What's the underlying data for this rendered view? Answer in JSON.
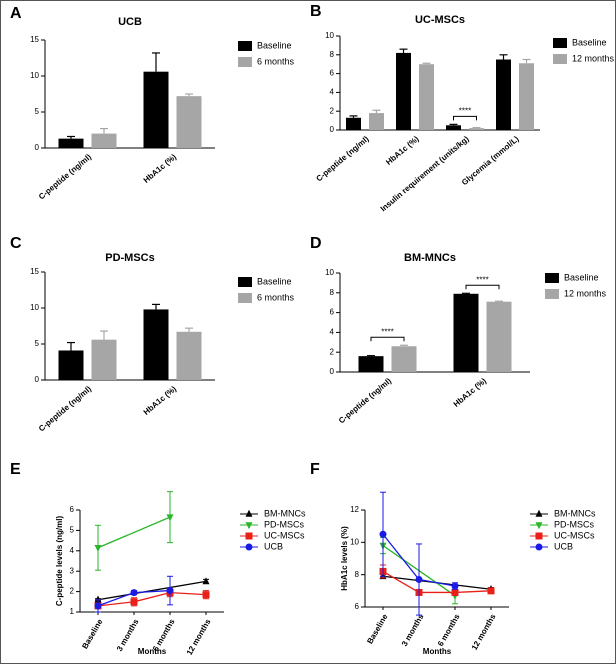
{
  "chart_data": [
    {
      "type": "bar",
      "panel": "A",
      "title": "UCB",
      "categories": [
        "C-peptide (ng/ml)",
        "HbA1c (%)"
      ],
      "series": [
        {
          "name": "Baseline",
          "color": "#000000",
          "values": [
            1.3,
            10.6
          ],
          "errors": [
            0.3,
            2.6
          ]
        },
        {
          "name": "6 months",
          "color": "#a6a6a6",
          "values": [
            2.0,
            7.2
          ],
          "errors": [
            0.7,
            0.3
          ]
        }
      ],
      "ylim": [
        0,
        15
      ],
      "yticks": [
        0,
        5,
        10,
        15
      ]
    },
    {
      "type": "bar",
      "panel": "B",
      "title": "UC-MSCs",
      "categories": [
        "C-peptide (ng/ml)",
        "HbA1c (%)",
        "Insulin requirement (units/kg)",
        "Glycemia (mmol/L)"
      ],
      "series": [
        {
          "name": "Baseline",
          "color": "#000000",
          "values": [
            1.3,
            8.2,
            0.5,
            7.5
          ],
          "errors": [
            0.2,
            0.4,
            0.1,
            0.5
          ]
        },
        {
          "name": "12 months",
          "color": "#a6a6a6",
          "values": [
            1.8,
            7.0,
            0.2,
            7.1
          ],
          "errors": [
            0.3,
            0.1,
            0.05,
            0.4
          ]
        }
      ],
      "ylim": [
        0,
        10
      ],
      "yticks": [
        0,
        2,
        4,
        6,
        8,
        10
      ],
      "significance": [
        {
          "category": "Insulin requirement (units/kg)",
          "label": "****"
        }
      ]
    },
    {
      "type": "bar",
      "panel": "C",
      "title": "PD-MSCs",
      "categories": [
        "C-peptide (ng/ml)",
        "HbA1c (%)"
      ],
      "series": [
        {
          "name": "Baseline",
          "color": "#000000",
          "values": [
            4.1,
            9.8
          ],
          "errors": [
            1.1,
            0.7
          ]
        },
        {
          "name": "6 months",
          "color": "#a6a6a6",
          "values": [
            5.6,
            6.7
          ],
          "errors": [
            1.2,
            0.5
          ]
        }
      ],
      "ylim": [
        0,
        15
      ],
      "yticks": [
        0,
        5,
        10,
        15
      ]
    },
    {
      "type": "bar",
      "panel": "D",
      "title": "BM-MNCs",
      "categories": [
        "C-peptide (ng/ml)",
        "HbA1c (%)"
      ],
      "series": [
        {
          "name": "Baseline",
          "color": "#000000",
          "values": [
            1.6,
            7.9
          ],
          "errors": [
            0.05,
            0.05
          ]
        },
        {
          "name": "12 months",
          "color": "#a6a6a6",
          "values": [
            2.6,
            7.1
          ],
          "errors": [
            0.1,
            0.05
          ]
        }
      ],
      "ylim": [
        0,
        10
      ],
      "yticks": [
        0,
        2,
        4,
        6,
        8,
        10
      ],
      "significance": [
        {
          "category": "C-peptide (ng/ml)",
          "label": "****"
        },
        {
          "category": "HbA1c (%)",
          "label": "****"
        }
      ]
    },
    {
      "type": "line",
      "panel": "E",
      "ylabel": "C-peptide levels (ng/ml)",
      "xlabel": "Months",
      "categories": [
        "Baseline",
        "3 months",
        "6 months",
        "12 months"
      ],
      "series": [
        {
          "name": "BM-MNCs",
          "color": "#000000",
          "marker": "triangle",
          "x": [
            "Baseline",
            "12 months"
          ],
          "values": [
            1.6,
            2.5
          ],
          "errors": [
            0.05,
            0.1
          ]
        },
        {
          "name": "PD-MSCs",
          "color": "#2bb52b",
          "marker": "triangle-down",
          "x": [
            "Baseline",
            "6 months"
          ],
          "values": [
            4.15,
            5.65
          ],
          "errors": [
            1.1,
            1.25
          ]
        },
        {
          "name": "UC-MSCs",
          "color": "#e8201a",
          "marker": "square",
          "x": [
            "Baseline",
            "3 months",
            "6 months",
            "12 months"
          ],
          "values": [
            1.3,
            1.5,
            1.95,
            1.85
          ],
          "errors": [
            0.3,
            0.2,
            0.2,
            0.2
          ]
        },
        {
          "name": "UCB",
          "color": "#1a1ae6",
          "marker": "circle",
          "x": [
            "Baseline",
            "3 months",
            "6 months"
          ],
          "values": [
            1.3,
            1.95,
            2.05
          ],
          "errors": [
            0.3,
            0.1,
            0.7
          ]
        }
      ],
      "ylim": [
        1,
        6
      ],
      "yticks": [
        1,
        2,
        3,
        4,
        5,
        6
      ]
    },
    {
      "type": "line",
      "panel": "F",
      "ylabel": "HbA1c levels (%)",
      "xlabel": "Months",
      "categories": [
        "Baseline",
        "3 months",
        "6 months",
        "12 months"
      ],
      "series": [
        {
          "name": "BM-MNCs",
          "color": "#000000",
          "marker": "triangle",
          "x": [
            "Baseline",
            "12 months"
          ],
          "values": [
            7.9,
            7.1
          ],
          "errors": [
            0.1,
            0.1
          ]
        },
        {
          "name": "PD-MSCs",
          "color": "#2bb52b",
          "marker": "triangle-down",
          "x": [
            "Baseline",
            "6 months"
          ],
          "values": [
            9.8,
            6.7
          ],
          "errors": [
            0.5,
            0.5
          ]
        },
        {
          "name": "UC-MSCs",
          "color": "#e8201a",
          "marker": "square",
          "x": [
            "Baseline",
            "3 months",
            "6 months",
            "12 months"
          ],
          "values": [
            8.2,
            6.9,
            6.9,
            7.0
          ],
          "errors": [
            0.4,
            0.1,
            0.1,
            0.1
          ]
        },
        {
          "name": "UCB",
          "color": "#1a1ae6",
          "marker": "circle",
          "x": [
            "Baseline",
            "3 months",
            "6 months"
          ],
          "values": [
            10.5,
            7.7,
            7.3
          ],
          "errors": [
            2.6,
            2.2,
            0.2
          ]
        }
      ],
      "ylim": [
        6,
        12
      ],
      "yticks": [
        6,
        8,
        10,
        12
      ]
    }
  ]
}
